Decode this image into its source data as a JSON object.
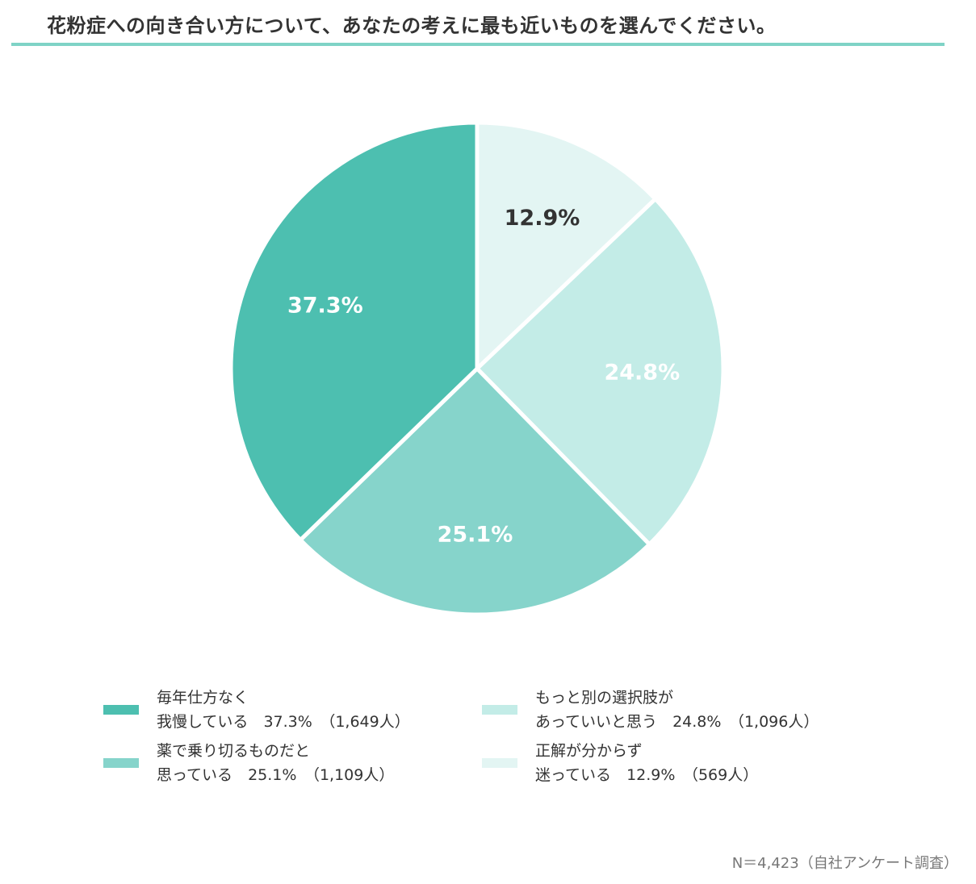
{
  "title": "花粉症への向き合い方について、あなたの考えに最も近いものを選んでください。",
  "chart_data": {
    "type": "pie",
    "start": "top",
    "direction": "clockwise",
    "slices": [
      {
        "label_line1": "正解が分からず",
        "label_line2": "迷っている",
        "value": 12.9,
        "value_label": "12.9%",
        "count": "（569人）",
        "color": "#e3f5f3",
        "text_color": "#333333"
      },
      {
        "label_line1": "もっと別の選択肢が",
        "label_line2": "あっていいと思う",
        "value": 24.8,
        "value_label": "24.8%",
        "count": "（1,096人）",
        "color": "#c3ece7",
        "text_color": "#ffffff"
      },
      {
        "label_line1": "薬で乗り切るものだと",
        "label_line2": "思っている",
        "value": 25.1,
        "value_label": "25.1%",
        "count": "（1,109人）",
        "color": "#86d4cb",
        "text_color": "#ffffff"
      },
      {
        "label_line1": "毎年仕方なく",
        "label_line2": "我慢している",
        "value": 37.3,
        "value_label": "37.3%",
        "count": "（1,649人）",
        "color": "#4dbfb0",
        "text_color": "#ffffff"
      }
    ],
    "legend_placement": "bottom"
  },
  "footer": "N＝4,423（自社アンケート調査）"
}
